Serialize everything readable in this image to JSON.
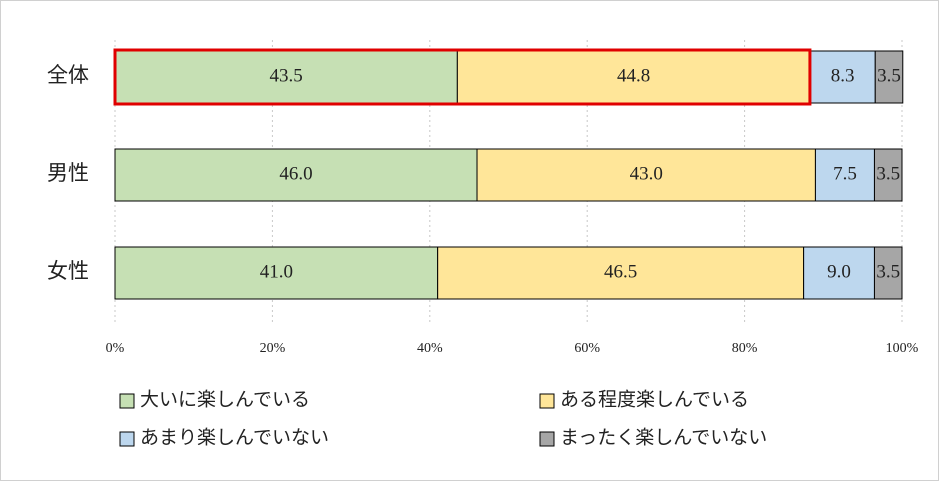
{
  "chart_data": {
    "type": "stacked-bar-horizontal",
    "categories": [
      "全体",
      "男性",
      "女性"
    ],
    "series": [
      {
        "name": "大いに楽しんでいる",
        "color": "#c6e0b4",
        "values": [
          43.5,
          46.0,
          41.0
        ],
        "value_labels": [
          "43.5",
          "46.0",
          "41.0"
        ]
      },
      {
        "name": "ある程度楽しんでいる",
        "color": "#ffe699",
        "values": [
          44.8,
          43.0,
          46.5
        ],
        "value_labels": [
          "44.8",
          "43.0",
          "46.5"
        ]
      },
      {
        "name": "あまり楽しんでいない",
        "color": "#bdd7ee",
        "values": [
          8.3,
          7.5,
          9.0
        ],
        "value_labels": [
          "8.3",
          "7.5",
          "9.0"
        ]
      },
      {
        "name": "まったく楽しんでいない",
        "color": "#a6a6a6",
        "values": [
          3.5,
          3.5,
          3.5
        ],
        "value_labels": [
          "3.5",
          "3.5",
          "3.5"
        ]
      }
    ],
    "xlim": [
      0,
      100
    ],
    "xticks": [
      {
        "value": 0,
        "label": "0%"
      },
      {
        "value": 20,
        "label": "20%"
      },
      {
        "value": 40,
        "label": "40%"
      },
      {
        "value": 60,
        "label": "60%"
      },
      {
        "value": 80,
        "label": "80%"
      },
      {
        "value": 100,
        "label": "100%"
      }
    ],
    "grid": true,
    "legend": "bottom"
  }
}
